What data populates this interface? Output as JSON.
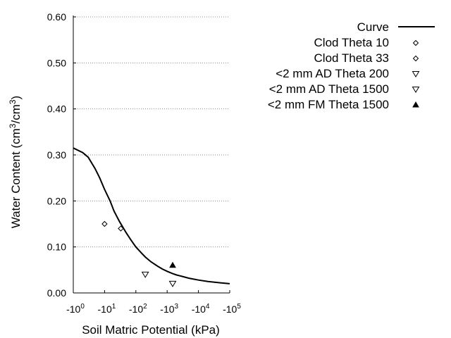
{
  "chart_data": {
    "type": "scatter",
    "xlabel": "Soil Matric Potential (kPa)",
    "ylabel": "Water Content (cm³/cm³)",
    "ylabel_parts": {
      "pre": "Water Content (cm",
      "sup1": "3",
      "mid": "/cm",
      "sup2": "3",
      "post": ")"
    },
    "x_scale": "log",
    "xlim": [
      1,
      100000
    ],
    "ylim": [
      0,
      0.6
    ],
    "x_ticks": [
      {
        "value": 1,
        "base": "-10",
        "exp": "0"
      },
      {
        "value": 10,
        "base": "-10",
        "exp": "1"
      },
      {
        "value": 100,
        "base": "-10",
        "exp": "2"
      },
      {
        "value": 1000,
        "base": "-10",
        "exp": "3"
      },
      {
        "value": 10000,
        "base": "-10",
        "exp": "4"
      },
      {
        "value": 100000,
        "base": "-10",
        "exp": "5"
      }
    ],
    "y_ticks": [
      {
        "value": 0.0,
        "label": "0.00"
      },
      {
        "value": 0.1,
        "label": "0.10"
      },
      {
        "value": 0.2,
        "label": "0.20"
      },
      {
        "value": 0.3,
        "label": "0.30"
      },
      {
        "value": 0.4,
        "label": "0.40"
      },
      {
        "value": 0.5,
        "label": "0.50"
      },
      {
        "value": 0.6,
        "label": "0.60"
      }
    ],
    "grid": "horizontal-dotted",
    "legend_position": "top-right-outside",
    "series": [
      {
        "name": "Curve",
        "kind": "line",
        "x": [
          1,
          2,
          3,
          5,
          7,
          10,
          15,
          20,
          30,
          50,
          70,
          100,
          150,
          200,
          300,
          500,
          700,
          1000,
          1500,
          2000,
          3000,
          5000,
          7000,
          10000,
          20000,
          50000,
          100000
        ],
        "y": [
          0.315,
          0.305,
          0.295,
          0.27,
          0.25,
          0.225,
          0.2,
          0.178,
          0.155,
          0.13,
          0.115,
          0.1,
          0.087,
          0.078,
          0.068,
          0.058,
          0.052,
          0.047,
          0.042,
          0.039,
          0.036,
          0.032,
          0.03,
          0.028,
          0.025,
          0.022,
          0.02
        ]
      },
      {
        "name": "Clod Theta 10",
        "kind": "marker",
        "marker": "diamond",
        "x": [
          10
        ],
        "y": [
          0.15
        ]
      },
      {
        "name": "Clod Theta 33",
        "kind": "marker",
        "marker": "diamond",
        "x": [
          33
        ],
        "y": [
          0.14
        ]
      },
      {
        "name": "<2 mm AD Theta 200",
        "kind": "marker",
        "marker": "triangle-down",
        "x": [
          200
        ],
        "y": [
          0.04
        ]
      },
      {
        "name": "<2 mm AD Theta 1500",
        "kind": "marker",
        "marker": "triangle-down",
        "x": [
          1500
        ],
        "y": [
          0.02
        ]
      },
      {
        "name": "<2 mm FM Theta 1500",
        "kind": "marker",
        "marker": "triangle-up-filled",
        "x": [
          1500
        ],
        "y": [
          0.06
        ]
      }
    ]
  }
}
